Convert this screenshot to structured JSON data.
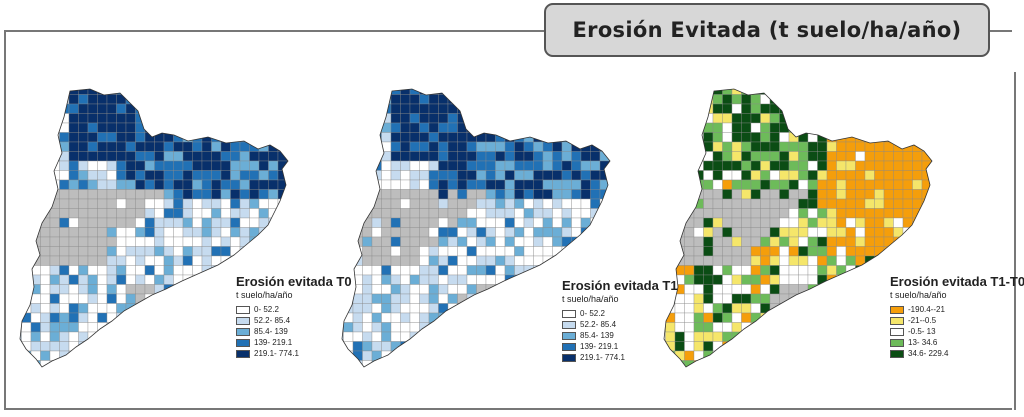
{
  "title": "Erosión Evitada (t suelo/ha/año)",
  "maps": [
    {
      "name": "T0",
      "legend_title": "Erosión evitada T0",
      "legend_unit": "t suelo/ha/año",
      "classes": [
        {
          "label": "0- 52.2",
          "color": "#ffffff"
        },
        {
          "label": "52.2- 85.4",
          "color": "#c6dbef"
        },
        {
          "label": "85.4- 139",
          "color": "#6baed6"
        },
        {
          "label": "139- 219.1",
          "color": "#2171b5"
        },
        {
          "label": "219.1- 774.1",
          "color": "#08306b"
        }
      ]
    },
    {
      "name": "T1",
      "legend_title": "Erosión evitada T1",
      "legend_unit": "t suelo/ha/año",
      "classes": [
        {
          "label": "0- 52.2",
          "color": "#ffffff"
        },
        {
          "label": "52.2- 85.4",
          "color": "#c6dbef"
        },
        {
          "label": "85.4- 139",
          "color": "#6baed6"
        },
        {
          "label": "139- 219.1",
          "color": "#2171b5"
        },
        {
          "label": "219.1- 774.1",
          "color": "#08306b"
        }
      ]
    },
    {
      "name": "T1-T0",
      "legend_title": "Erosión evitada T1-T0",
      "legend_unit": "t suelo/ha/año",
      "classes": [
        {
          "label": "-190.4--21",
          "color": "#f59e0b"
        },
        {
          "label": "-21--0.5",
          "color": "#f5e66a"
        },
        {
          "label": "-0.5- 13",
          "color": "#ffffff"
        },
        {
          "label": "13- 34.6",
          "color": "#6dbb5a"
        },
        {
          "label": "34.6- 229.4",
          "color": "#0b4d14"
        }
      ]
    }
  ],
  "no_data_color": "#bdbdbd"
}
